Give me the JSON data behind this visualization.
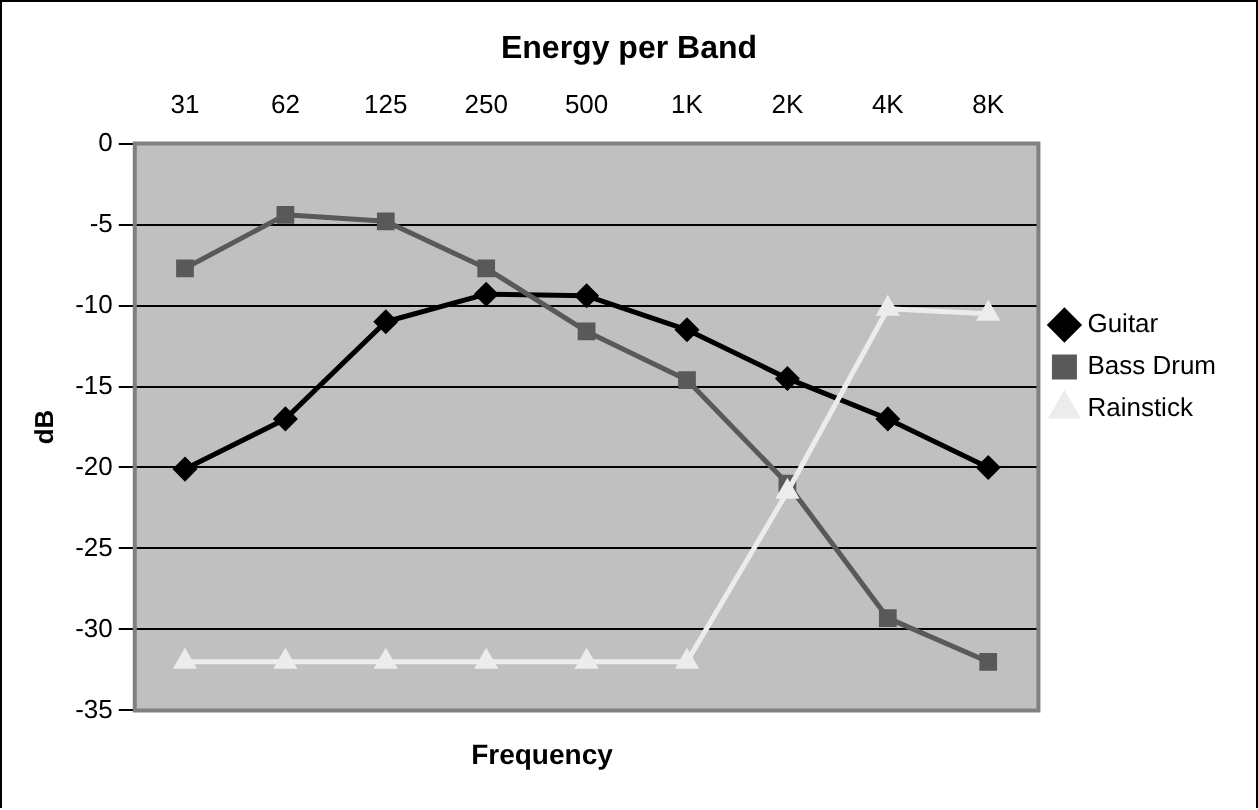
{
  "chart_data": {
    "type": "line",
    "title": "Energy per Band",
    "xlabel": "Frequency",
    "ylabel": "dB",
    "categories": [
      "31",
      "62",
      "125",
      "250",
      "500",
      "1K",
      "2K",
      "4K",
      "8K"
    ],
    "series": [
      {
        "name": "Guitar",
        "color": "#000000",
        "marker": "diamond",
        "values": [
          -20.1,
          -17,
          -11,
          -9.3,
          -9.4,
          -11.5,
          -14.5,
          -17,
          -20
        ]
      },
      {
        "name": "Bass Drum",
        "color": "#595959",
        "marker": "square",
        "values": [
          -7.7,
          -4.4,
          -4.8,
          -7.7,
          -11.6,
          -14.6,
          -21,
          -29.3,
          -32
        ]
      },
      {
        "name": "Rainstick",
        "color": "#ececec",
        "marker": "triangle",
        "values": [
          -32,
          -32,
          -32,
          -32,
          -32,
          -32,
          -21.5,
          -10.2,
          -10.5
        ]
      }
    ],
    "ylim": [
      -35,
      0
    ],
    "yticks": [
      -35,
      -30,
      -25,
      -20,
      -15,
      -10,
      -5,
      0
    ],
    "grid": "y",
    "legend": "right"
  }
}
